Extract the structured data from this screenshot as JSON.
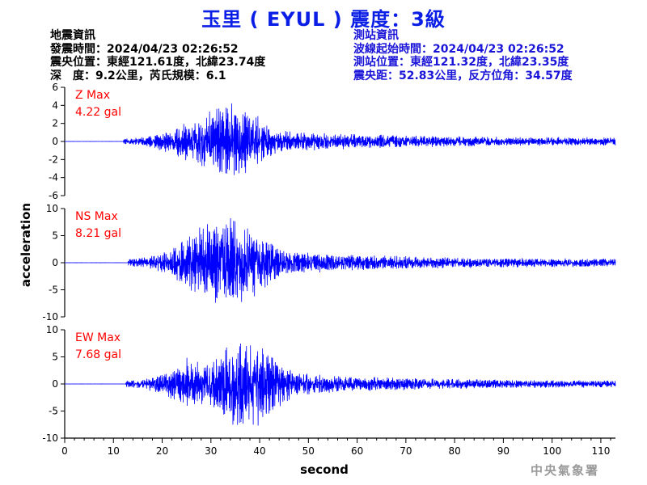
{
  "title": "玉里 ( EYUL ) 震度：3級",
  "quake_info": {
    "heading": "地震資訊",
    "origin_time": "發震時間：2024/04/23 02:26:52",
    "epicenter": "震央位置：東經121.61度，北緯23.74度",
    "depth_magnitude": "深　度：9.2公里，芮氏規模：6.1"
  },
  "station_info": {
    "heading": "測站資訊",
    "wave_start": "波線起始時間：2024/04/23 02:26:52",
    "location": "測站位置：東經121.32度，北緯23.35度",
    "distance": "震央距：52.83公里，反方位角：34.57度"
  },
  "credit": "中央氣象署",
  "colors": {
    "title": "#0a1ee6",
    "station_text": "#1a14d8",
    "trace": "#0000ff",
    "max_label": "#ff0000"
  },
  "chart_data": [
    {
      "type": "line",
      "component": "Z",
      "max_label": "Z Max",
      "max_value": "4.22 gal",
      "ylim": [
        -6,
        6
      ],
      "yticks": [
        -6,
        -4,
        -2,
        0,
        2,
        4,
        6
      ],
      "xlim": [
        0,
        113
      ],
      "peak": 4.22,
      "envelope": {
        "onset": 12,
        "rise_end": 25,
        "peak_center": 34,
        "peak_width": 9,
        "coda_level": 0.1,
        "coda_decay": 22
      }
    },
    {
      "type": "line",
      "component": "NS",
      "max_label": "NS Max",
      "max_value": "8.21 gal",
      "ylim": [
        -10,
        10
      ],
      "yticks": [
        -10,
        -5,
        0,
        5,
        10
      ],
      "xlim": [
        0,
        113
      ],
      "peak": 8.21,
      "envelope": {
        "onset": 13,
        "rise_end": 25,
        "peak_center": 33,
        "peak_width": 10,
        "coda_level": 0.08,
        "coda_decay": 22
      }
    },
    {
      "type": "line",
      "component": "EW",
      "max_label": "EW Max",
      "max_value": "7.68 gal",
      "ylim": [
        -10,
        10
      ],
      "yticks": [
        -10,
        -5,
        0,
        5,
        10
      ],
      "xlim": [
        0,
        113
      ],
      "peak": 7.68,
      "envelope": {
        "onset": 12.5,
        "rise_end": 25,
        "peak_center": 37,
        "peak_width": 9,
        "coda_level": 0.07,
        "coda_decay": 22
      }
    }
  ],
  "axes": {
    "ylabel": "acceleration",
    "xlabel": "second",
    "xticks": [
      0,
      10,
      20,
      30,
      40,
      50,
      60,
      70,
      80,
      90,
      100,
      110
    ]
  }
}
